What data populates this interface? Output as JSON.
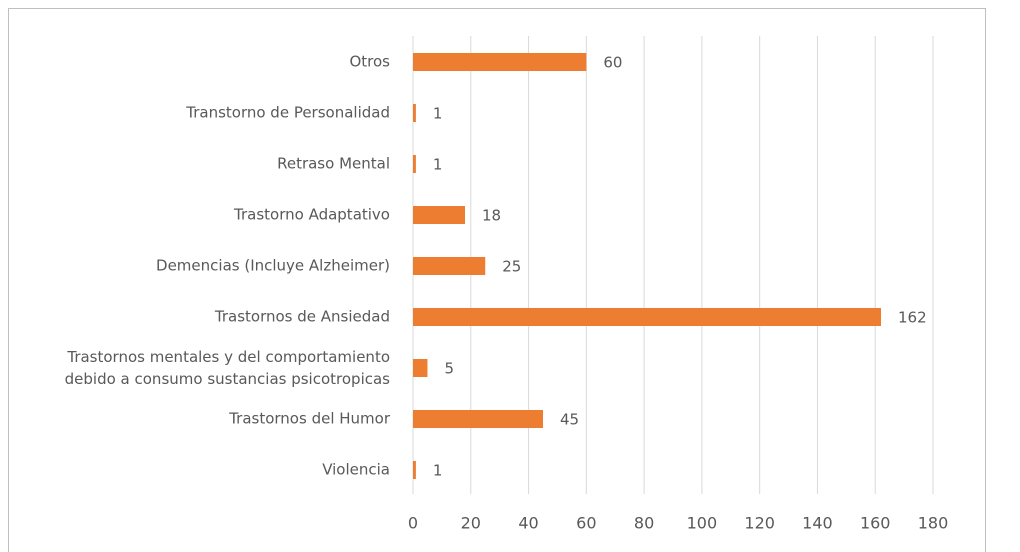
{
  "chart_data": {
    "type": "bar",
    "orientation": "horizontal",
    "categories": [
      "Otros",
      "Transtorno de Personalidad",
      "Retraso Mental",
      "Trastorno Adaptativo",
      "Demencias (Incluye Alzheimer)",
      "Trastornos de Ansiedad",
      "Trastornos mentales y del comportamiento debido a consumo sustancias psicotropicas",
      "Trastornos del Humor",
      "Violencia"
    ],
    "values": [
      60,
      1,
      1,
      18,
      25,
      162,
      5,
      45,
      1
    ],
    "color": "#ed7d31",
    "xlim": [
      0,
      180
    ],
    "xticks": [
      0,
      20,
      40,
      60,
      80,
      100,
      120,
      140,
      160,
      180
    ],
    "grid": true
  }
}
